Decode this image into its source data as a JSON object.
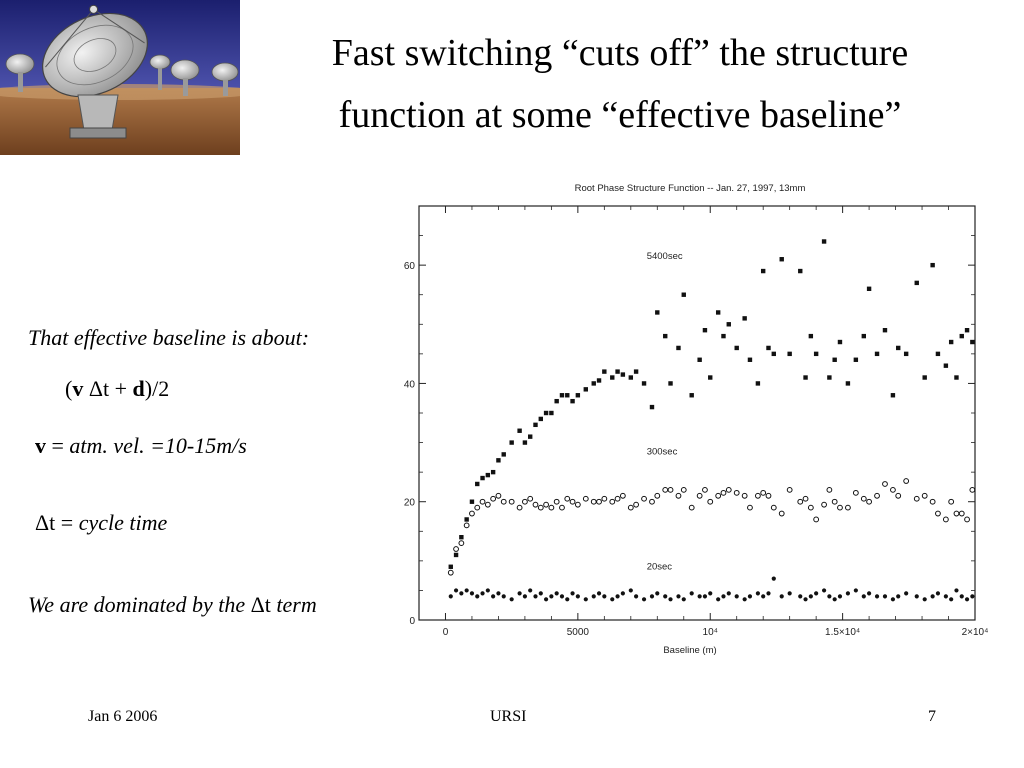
{
  "slide": {
    "title_line1": "Fast switching “cuts off” the structure",
    "title_line2": "function at some “effective baseline”",
    "effective_text": "That effective baseline is about:",
    "formula": {
      "open": "(",
      "v": "v",
      "dt": "Δt",
      "plus": " + ",
      "d": "d",
      "close": ")/2"
    },
    "vdef": {
      "v": "v",
      "eq": " = ",
      "text": "atm. vel. =10-15m/s"
    },
    "dtdef": {
      "dt": "Δt",
      "eq": " = ",
      "text": "cycle time"
    },
    "dominated": {
      "pre": "We are dominated by the ",
      "dt": "Δt",
      "post": " term"
    },
    "footer": {
      "left": "Jan 6 2006",
      "center": "URSI",
      "right": "7"
    }
  },
  "chart_data": {
    "type": "scatter",
    "title": "Root Phase Structure Function -- Jan. 27, 1997, 13mm",
    "xlabel": "Baseline (m)",
    "ylabel": "",
    "xlim": [
      -1000,
      20000
    ],
    "ylim": [
      0,
      70
    ],
    "x_ticks": [
      0,
      5000,
      10000,
      15000,
      20000
    ],
    "x_tick_labels": [
      "0",
      "5000",
      "10⁴",
      "1.5×10⁴",
      "2×10⁴"
    ],
    "y_ticks": [
      0,
      20,
      40,
      60
    ],
    "y_tick_labels": [
      "0",
      "20",
      "40",
      "60"
    ],
    "series": [
      {
        "name": "5400sec",
        "marker": "square",
        "points": [
          [
            200,
            9
          ],
          [
            400,
            11
          ],
          [
            600,
            14
          ],
          [
            800,
            17
          ],
          [
            1000,
            20
          ],
          [
            1200,
            23
          ],
          [
            1400,
            24
          ],
          [
            1600,
            24.5
          ],
          [
            1800,
            25
          ],
          [
            2000,
            27
          ],
          [
            2200,
            28
          ],
          [
            2500,
            30
          ],
          [
            2800,
            32
          ],
          [
            3000,
            30
          ],
          [
            3200,
            31
          ],
          [
            3400,
            33
          ],
          [
            3600,
            34
          ],
          [
            3800,
            35
          ],
          [
            4000,
            35
          ],
          [
            4200,
            37
          ],
          [
            4400,
            38
          ],
          [
            4600,
            38
          ],
          [
            4800,
            37
          ],
          [
            5000,
            38
          ],
          [
            5300,
            39
          ],
          [
            5600,
            40
          ],
          [
            5800,
            40.5
          ],
          [
            6000,
            42
          ],
          [
            6300,
            41
          ],
          [
            6500,
            42
          ],
          [
            6700,
            41.5
          ],
          [
            7000,
            41
          ],
          [
            7200,
            42
          ],
          [
            7500,
            40
          ],
          [
            7800,
            36
          ],
          [
            8000,
            52
          ],
          [
            8300,
            48
          ],
          [
            8500,
            40
          ],
          [
            8800,
            46
          ],
          [
            9000,
            55
          ],
          [
            9300,
            38
          ],
          [
            9600,
            44
          ],
          [
            9800,
            49
          ],
          [
            10000,
            41
          ],
          [
            10300,
            52
          ],
          [
            10500,
            48
          ],
          [
            10700,
            50
          ],
          [
            11000,
            46
          ],
          [
            11300,
            51
          ],
          [
            11500,
            44
          ],
          [
            11800,
            40
          ],
          [
            12000,
            59
          ],
          [
            12200,
            46
          ],
          [
            12400,
            45
          ],
          [
            12700,
            61
          ],
          [
            13000,
            45
          ],
          [
            13400,
            59
          ],
          [
            13600,
            41
          ],
          [
            13800,
            48
          ],
          [
            14000,
            45
          ],
          [
            14300,
            64
          ],
          [
            14500,
            41
          ],
          [
            14700,
            44
          ],
          [
            14900,
            47
          ],
          [
            15200,
            40
          ],
          [
            15500,
            44
          ],
          [
            15800,
            48
          ],
          [
            16000,
            56
          ],
          [
            16300,
            45
          ],
          [
            16600,
            49
          ],
          [
            16900,
            38
          ],
          [
            17100,
            46
          ],
          [
            17400,
            45
          ],
          [
            17800,
            57
          ],
          [
            18100,
            41
          ],
          [
            18400,
            60
          ],
          [
            18600,
            45
          ],
          [
            18900,
            43
          ],
          [
            19100,
            47
          ],
          [
            19300,
            41
          ],
          [
            19500,
            48
          ],
          [
            19700,
            49
          ],
          [
            19900,
            47
          ]
        ]
      },
      {
        "name": "300sec",
        "marker": "circle",
        "points": [
          [
            200,
            8
          ],
          [
            400,
            12
          ],
          [
            600,
            13
          ],
          [
            800,
            16
          ],
          [
            1000,
            18
          ],
          [
            1200,
            19
          ],
          [
            1400,
            20
          ],
          [
            1600,
            19.5
          ],
          [
            1800,
            20.5
          ],
          [
            2000,
            21
          ],
          [
            2200,
            20
          ],
          [
            2500,
            20
          ],
          [
            2800,
            19
          ],
          [
            3000,
            20
          ],
          [
            3200,
            20.5
          ],
          [
            3400,
            19.5
          ],
          [
            3600,
            19
          ],
          [
            3800,
            19.5
          ],
          [
            4000,
            19
          ],
          [
            4200,
            20
          ],
          [
            4400,
            19
          ],
          [
            4600,
            20.5
          ],
          [
            4800,
            20
          ],
          [
            5000,
            19.5
          ],
          [
            5300,
            20.5
          ],
          [
            5600,
            20
          ],
          [
            5800,
            20
          ],
          [
            6000,
            20.5
          ],
          [
            6300,
            20
          ],
          [
            6500,
            20.5
          ],
          [
            6700,
            21
          ],
          [
            7000,
            19
          ],
          [
            7200,
            19.5
          ],
          [
            7500,
            20.5
          ],
          [
            7800,
            20
          ],
          [
            8000,
            21
          ],
          [
            8300,
            22
          ],
          [
            8500,
            22
          ],
          [
            8800,
            21
          ],
          [
            9000,
            22
          ],
          [
            9300,
            19
          ],
          [
            9600,
            21
          ],
          [
            9800,
            22
          ],
          [
            10000,
            20
          ],
          [
            10300,
            21
          ],
          [
            10500,
            21.5
          ],
          [
            10700,
            22
          ],
          [
            11000,
            21.5
          ],
          [
            11300,
            21
          ],
          [
            11500,
            19
          ],
          [
            11800,
            21
          ],
          [
            12000,
            21.5
          ],
          [
            12200,
            21
          ],
          [
            12400,
            19
          ],
          [
            12700,
            18
          ],
          [
            13000,
            22
          ],
          [
            13400,
            20
          ],
          [
            13600,
            20.5
          ],
          [
            13800,
            19
          ],
          [
            14000,
            17
          ],
          [
            14300,
            19.5
          ],
          [
            14500,
            22
          ],
          [
            14700,
            20
          ],
          [
            14900,
            19
          ],
          [
            15200,
            19
          ],
          [
            15500,
            21.5
          ],
          [
            15800,
            20.5
          ],
          [
            16000,
            20
          ],
          [
            16300,
            21
          ],
          [
            16600,
            23
          ],
          [
            16900,
            22
          ],
          [
            17100,
            21
          ],
          [
            17400,
            23.5
          ],
          [
            17800,
            20.5
          ],
          [
            18100,
            21
          ],
          [
            18400,
            20
          ],
          [
            18600,
            18
          ],
          [
            18900,
            17
          ],
          [
            19100,
            20
          ],
          [
            19300,
            18
          ],
          [
            19500,
            18
          ],
          [
            19700,
            17
          ],
          [
            19900,
            22
          ]
        ]
      },
      {
        "name": "20sec",
        "marker": "dot",
        "points": [
          [
            200,
            4
          ],
          [
            400,
            5
          ],
          [
            600,
            4.5
          ],
          [
            800,
            5
          ],
          [
            1000,
            4.5
          ],
          [
            1200,
            4
          ],
          [
            1400,
            4.5
          ],
          [
            1600,
            5
          ],
          [
            1800,
            4
          ],
          [
            2000,
            4.5
          ],
          [
            2200,
            4
          ],
          [
            2500,
            3.5
          ],
          [
            2800,
            4.5
          ],
          [
            3000,
            4
          ],
          [
            3200,
            5
          ],
          [
            3400,
            4
          ],
          [
            3600,
            4.5
          ],
          [
            3800,
            3.5
          ],
          [
            4000,
            4
          ],
          [
            4200,
            4.5
          ],
          [
            4400,
            4
          ],
          [
            4600,
            3.5
          ],
          [
            4800,
            4.5
          ],
          [
            5000,
            4
          ],
          [
            5300,
            3.5
          ],
          [
            5600,
            4
          ],
          [
            5800,
            4.5
          ],
          [
            6000,
            4
          ],
          [
            6300,
            3.5
          ],
          [
            6500,
            4
          ],
          [
            6700,
            4.5
          ],
          [
            7000,
            5
          ],
          [
            7200,
            4
          ],
          [
            7500,
            3.5
          ],
          [
            7800,
            4
          ],
          [
            8000,
            4.5
          ],
          [
            8300,
            4
          ],
          [
            8500,
            3.5
          ],
          [
            8800,
            4
          ],
          [
            9000,
            3.5
          ],
          [
            9300,
            4.5
          ],
          [
            9600,
            4
          ],
          [
            9800,
            4
          ],
          [
            10000,
            4.5
          ],
          [
            10300,
            3.5
          ],
          [
            10500,
            4
          ],
          [
            10700,
            4.5
          ],
          [
            11000,
            4
          ],
          [
            11300,
            3.5
          ],
          [
            11500,
            4
          ],
          [
            11800,
            4.5
          ],
          [
            12000,
            4
          ],
          [
            12200,
            4.5
          ],
          [
            12400,
            7
          ],
          [
            12700,
            4
          ],
          [
            13000,
            4.5
          ],
          [
            13400,
            4
          ],
          [
            13600,
            3.5
          ],
          [
            13800,
            4
          ],
          [
            14000,
            4.5
          ],
          [
            14300,
            5
          ],
          [
            14500,
            4
          ],
          [
            14700,
            3.5
          ],
          [
            14900,
            4
          ],
          [
            15200,
            4.5
          ],
          [
            15500,
            5
          ],
          [
            15800,
            4
          ],
          [
            16000,
            4.5
          ],
          [
            16300,
            4
          ],
          [
            16600,
            4
          ],
          [
            16900,
            3.5
          ],
          [
            17100,
            4
          ],
          [
            17400,
            4.5
          ],
          [
            17800,
            4
          ],
          [
            18100,
            3.5
          ],
          [
            18400,
            4
          ],
          [
            18600,
            4.5
          ],
          [
            18900,
            4
          ],
          [
            19100,
            3.5
          ],
          [
            19300,
            5
          ],
          [
            19500,
            4
          ],
          [
            19700,
            3.5
          ],
          [
            19900,
            4
          ]
        ]
      }
    ],
    "annotations": [
      {
        "text": "5400sec",
        "x": 7600,
        "y": 61
      },
      {
        "text": "300sec",
        "x": 7600,
        "y": 28
      },
      {
        "text": "20sec",
        "x": 7600,
        "y": 8.5
      }
    ],
    "grid": false,
    "legend": "inline labels"
  }
}
